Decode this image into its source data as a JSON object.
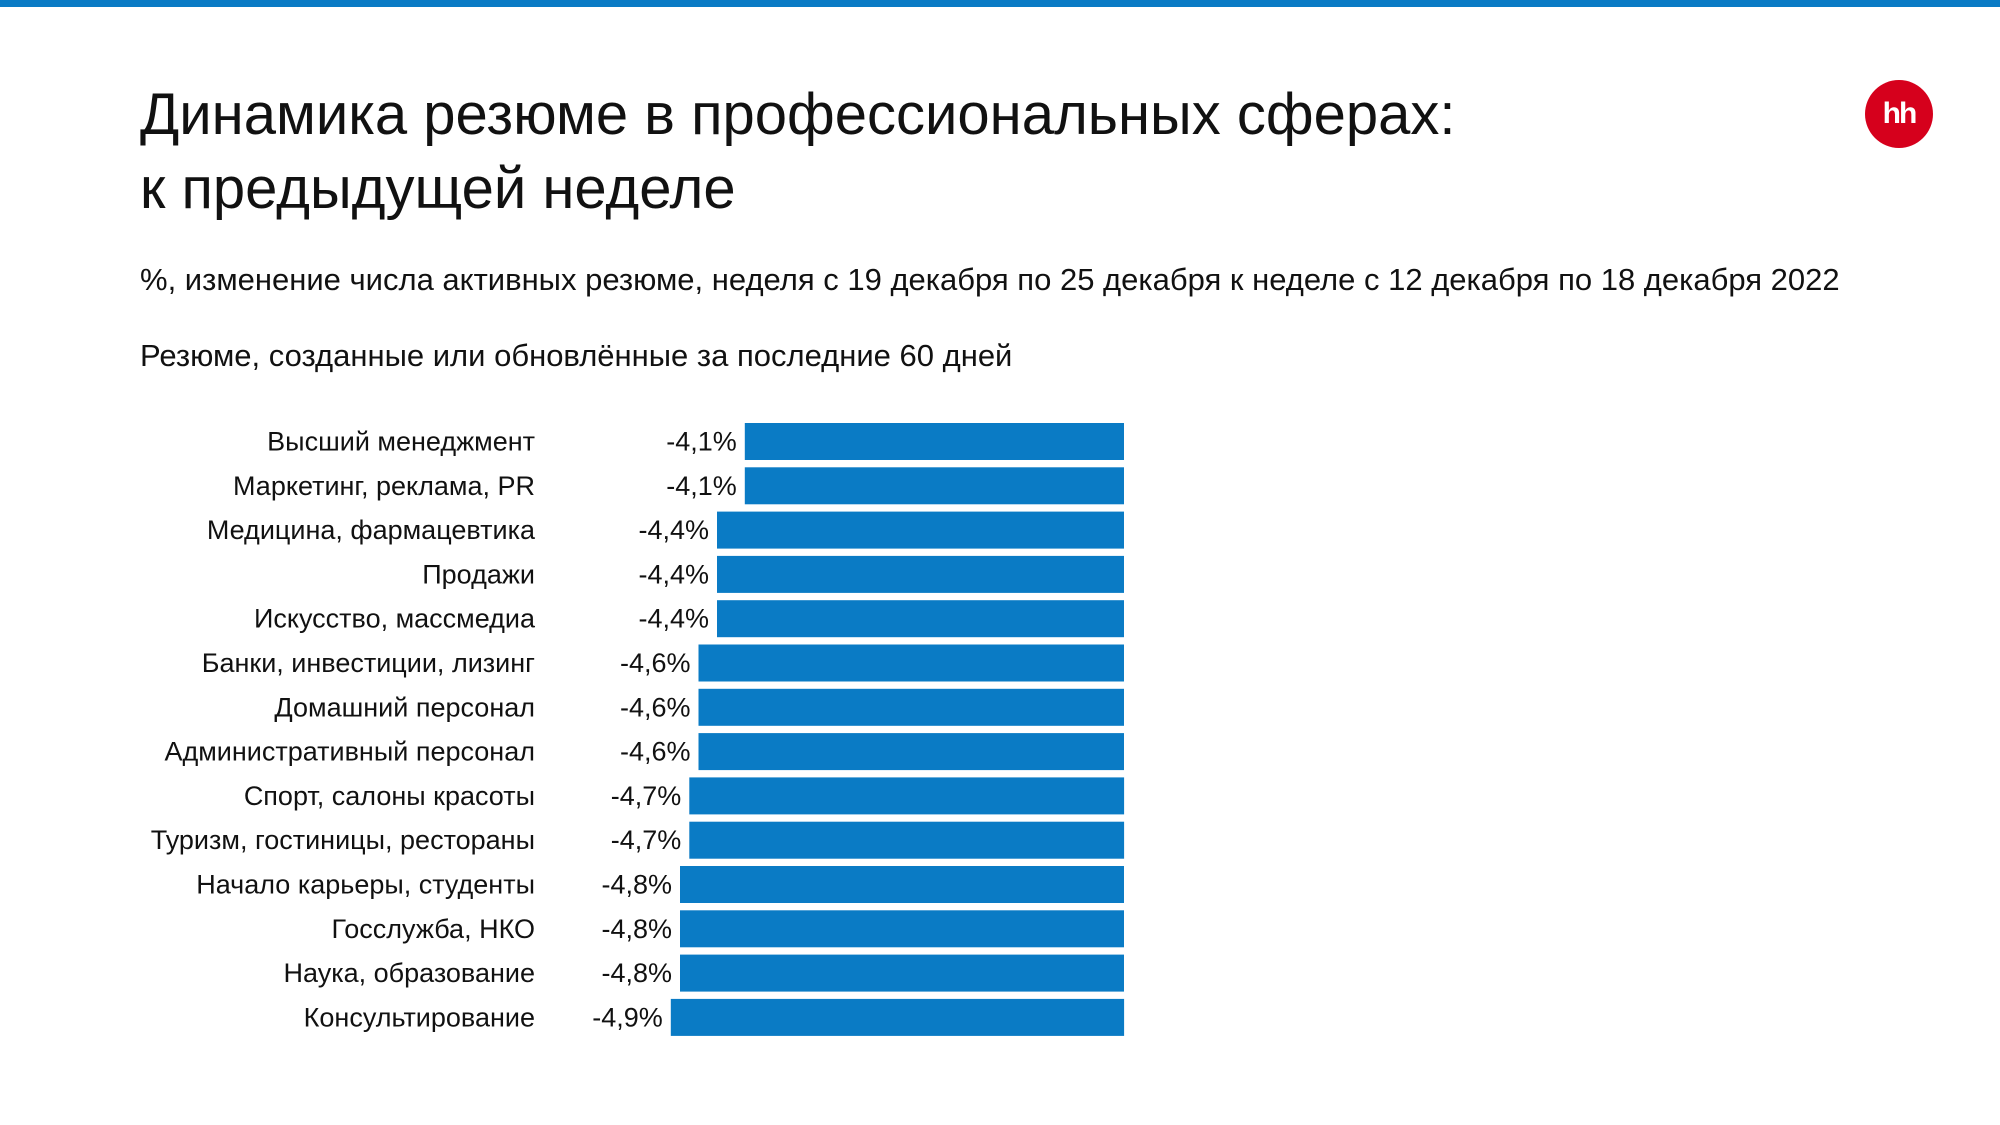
{
  "brand": {
    "logo_text": "hh",
    "logo_color": "#d6001c",
    "accent_color": "#0a7bc5"
  },
  "header": {
    "title_line1": "Динамика резюме в профессиональных сферах:",
    "title_line2": "к предыдущей неделе",
    "subtitle": "%, изменение числа активных резюме, неделя с 19 декабря по 25 декабря к неделе с 12 декабря по 18 декабря 2022",
    "note": "Резюме, созданные или обновлённые за последние 60 дней"
  },
  "chart_data": {
    "type": "bar",
    "orientation": "horizontal",
    "bar_color": "#0a7bc5",
    "categories": [
      "Высший менеджмент",
      "Маркетинг, реклама, PR",
      "Медицина, фармацевтика",
      "Продажи",
      "Искусство, массмедиа",
      "Банки, инвестиции, лизинг",
      "Домашний персонал",
      "Административный персонал",
      "Спорт, салоны красоты",
      "Туризм, гостиницы, рестораны",
      "Начало карьеры, студенты",
      "Госслужба, НКО",
      "Наука, образование",
      "Консультирование"
    ],
    "values": [
      -4.1,
      -4.1,
      -4.4,
      -4.4,
      -4.4,
      -4.6,
      -4.6,
      -4.6,
      -4.7,
      -4.7,
      -4.8,
      -4.8,
      -4.8,
      -4.9
    ],
    "labels": [
      "-4,1%",
      "-4,1%",
      "-4,4%",
      "-4,4%",
      "-4,4%",
      "-4,6%",
      "-4,6%",
      "-4,6%",
      "-4,7%",
      "-4,7%",
      "-4,8%",
      "-4,8%",
      "-4,8%",
      "-4,9%"
    ],
    "xlim": [
      -4.9,
      0
    ],
    "grid": false,
    "legend": "none"
  }
}
